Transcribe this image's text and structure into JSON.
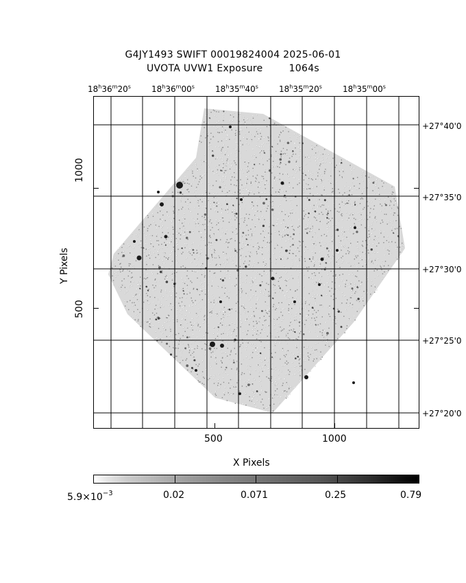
{
  "title_line1": "G4JY1493 SWIFT 00019824004 2025-06-01",
  "title_line2": "UVOTA UVW1 Exposure        1064s",
  "ra_labels": [
    {
      "h": "18",
      "m": "36",
      "s": "20"
    },
    {
      "h": "18",
      "m": "36",
      "s": "00"
    },
    {
      "h": "18",
      "m": "35",
      "s": "40"
    },
    {
      "h": "18",
      "m": "35",
      "s": "20"
    },
    {
      "h": "18",
      "m": "35",
      "s": "00"
    }
  ],
  "dec_labels": [
    "+27°40'0",
    "+27°35'0",
    "+27°30'0",
    "+27°25'0",
    "+27°20'0"
  ],
  "x_ticks": [
    "500",
    "1000"
  ],
  "y_ticks": [
    "1000",
    "500"
  ],
  "xlabel": "X Pixels",
  "ylabel": "Y Pixels",
  "colorbar": {
    "labels": [
      "5.9×10",
      "0.02",
      "0.071",
      "0.25",
      "0.79"
    ],
    "exp": "−3"
  }
}
